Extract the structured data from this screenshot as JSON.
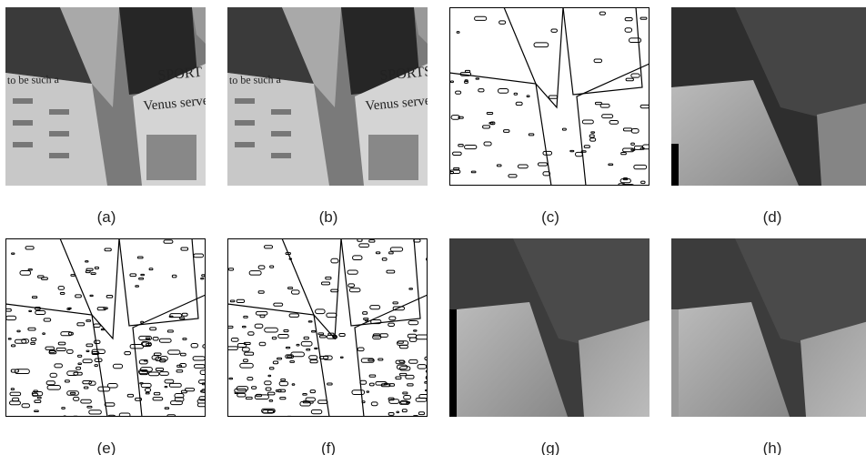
{
  "panels": [
    {
      "label": "(a)",
      "image_text": [
        "to be such a",
        "SPORT",
        "Venus serves"
      ]
    },
    {
      "label": "(b)",
      "image_text": [
        "to be such a",
        "SPORTS",
        "Venus serves"
      ]
    },
    {
      "label": "(c)"
    },
    {
      "label": "(d)"
    },
    {
      "label": "(e)"
    },
    {
      "label": "(f)"
    },
    {
      "label": "(g)"
    },
    {
      "label": "(h)"
    }
  ]
}
